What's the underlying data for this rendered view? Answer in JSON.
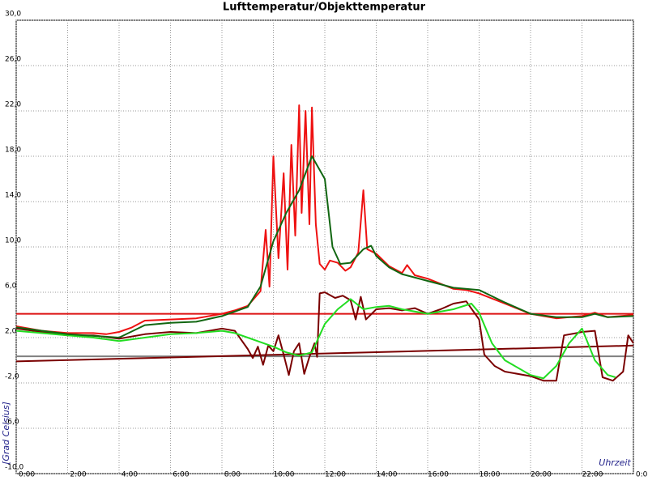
{
  "chart_data": {
    "type": "line",
    "title": "Lufttemperatur/Objekttemperatur",
    "xlabel": "Uhrzeit",
    "ylabel": "[Grad Celsius]",
    "xlim": [
      0,
      24
    ],
    "xticks": [
      {
        "value": 0,
        "label": "0:00"
      },
      {
        "value": 2,
        "label": "2:00"
      },
      {
        "value": 4,
        "label": "4:00"
      },
      {
        "value": 6,
        "label": "6:00"
      },
      {
        "value": 8,
        "label": "8:00"
      },
      {
        "value": 10,
        "label": "10:00"
      },
      {
        "value": 12,
        "label": "12:00"
      },
      {
        "value": 14,
        "label": "14:00"
      },
      {
        "value": 16,
        "label": "16:00"
      },
      {
        "value": 18,
        "label": "18:00"
      },
      {
        "value": 20,
        "label": "20:00"
      },
      {
        "value": 22,
        "label": "22:00"
      },
      {
        "value": 24,
        "label": "0:00"
      }
    ],
    "ylim": [
      -10,
      30
    ],
    "yticks": [
      {
        "value": -10,
        "label": "-10,0"
      },
      {
        "value": -6,
        "label": "-6,0"
      },
      {
        "value": -2,
        "label": "-2,0"
      },
      {
        "value": 2,
        "label": "2,0"
      },
      {
        "value": 6,
        "label": "6,0"
      },
      {
        "value": 10,
        "label": "10,0"
      },
      {
        "value": 14,
        "label": "14,0"
      },
      {
        "value": 18,
        "label": "18,0"
      },
      {
        "value": 22,
        "label": "22,0"
      },
      {
        "value": 26,
        "label": "26,0"
      },
      {
        "value": 30,
        "label": "30,0"
      }
    ],
    "grid": true,
    "series": [
      {
        "color": "#808080",
        "x": [
          0,
          24
        ],
        "values": [
          0.35,
          0.35
        ]
      },
      {
        "color": "#dd1111",
        "x": [
          0,
          24
        ],
        "values": [
          4.1,
          4.1
        ]
      },
      {
        "color": "#7a0000",
        "x": [
          0,
          24
        ],
        "values": [
          -0.1,
          1.3
        ]
      },
      {
        "color": "#7a0000",
        "x": [
          0,
          1,
          2,
          3,
          4,
          5,
          6,
          7,
          8,
          8.5,
          9,
          9.2,
          9.4,
          9.6,
          9.8,
          10,
          10.2,
          10.4,
          10.6,
          10.8,
          11,
          11.2,
          11.4,
          11.6,
          11.7,
          11.8,
          12,
          12.4,
          12.7,
          13,
          13.2,
          13.4,
          13.6,
          14,
          14.5,
          15,
          15.5,
          16,
          16.5,
          17,
          17.5,
          18,
          18.2,
          18.6,
          19,
          20,
          20.5,
          21,
          21.3,
          21.8,
          22,
          22.5,
          22.8,
          23.2,
          23.6,
          23.8,
          24
        ],
        "values": [
          2.8,
          2.5,
          2.2,
          2.2,
          1.9,
          2.3,
          2.5,
          2.4,
          2.8,
          2.6,
          1.0,
          0.2,
          1.2,
          -0.4,
          1.3,
          0.8,
          2.2,
          0.5,
          -1.3,
          0.8,
          1.5,
          -1.2,
          0.3,
          1.5,
          0.3,
          5.9,
          6.0,
          5.5,
          5.7,
          5.3,
          3.6,
          5.6,
          3.6,
          4.5,
          4.6,
          4.4,
          4.6,
          4.1,
          4.5,
          5.0,
          5.2,
          3.6,
          0.5,
          -0.5,
          -1.0,
          -1.4,
          -1.8,
          -1.8,
          2.2,
          2.4,
          2.5,
          2.6,
          -1.5,
          -1.8,
          -1.0,
          2.2,
          1.5
        ]
      },
      {
        "color": "#22dd22",
        "x": [
          0,
          2,
          3,
          4,
          5,
          6,
          7,
          8,
          8.5,
          9,
          9.5,
          10,
          10.5,
          11,
          11.5,
          12,
          12.5,
          13,
          13.5,
          14,
          14.5,
          15,
          16,
          17,
          17.7,
          18,
          18.5,
          19,
          20,
          20.5,
          21,
          21.5,
          22,
          22.5,
          23,
          23.3
        ],
        "values": [
          2.6,
          2.2,
          2.0,
          1.7,
          2.0,
          2.3,
          2.4,
          2.6,
          2.4,
          2.0,
          1.6,
          1.2,
          0.7,
          0.4,
          0.7,
          3.2,
          4.5,
          5.4,
          4.5,
          4.7,
          4.8,
          4.5,
          4.1,
          4.5,
          5.0,
          4.2,
          1.5,
          0,
          -1.3,
          -1.6,
          -0.5,
          1.5,
          2.8,
          0,
          -1.3,
          -1.5
        ]
      },
      {
        "color": "#ee1111",
        "x": [
          0,
          1,
          2,
          3,
          3.5,
          4,
          4.5,
          5,
          6,
          7,
          8,
          8.5,
          9,
          9.5,
          9.7,
          9.85,
          10,
          10.2,
          10.4,
          10.55,
          10.7,
          10.85,
          11,
          11.1,
          11.25,
          11.4,
          11.5,
          11.65,
          11.8,
          12,
          12.2,
          12.5,
          12.8,
          13,
          13.3,
          13.5,
          13.65,
          14,
          14.5,
          15,
          15.2,
          15.5,
          16,
          17,
          17.5,
          18,
          19,
          20,
          21,
          21.5,
          22,
          22.5,
          23,
          24
        ],
        "values": [
          3.0,
          2.6,
          2.4,
          2.4,
          2.3,
          2.5,
          2.9,
          3.5,
          3.6,
          3.7,
          4.1,
          4.4,
          4.8,
          6.1,
          11.5,
          6.5,
          18,
          9,
          16.5,
          8,
          19,
          11,
          22.5,
          13,
          22,
          12,
          22.3,
          12,
          8.5,
          8.0,
          8.8,
          8.6,
          7.9,
          8.2,
          9.5,
          15,
          9.8,
          9.4,
          8.3,
          7.7,
          8.4,
          7.5,
          7.2,
          6.3,
          6.2,
          5.9,
          5.0,
          4.1,
          3.7,
          3.8,
          3.9,
          4.2,
          3.8,
          4.0
        ]
      },
      {
        "color": "#116611",
        "x": [
          0,
          2,
          4,
          5,
          6,
          7,
          8,
          9,
          9.5,
          10,
          10.5,
          11,
          11.5,
          12,
          12.3,
          12.6,
          13,
          13.5,
          13.8,
          14,
          14.5,
          15,
          16,
          17,
          18,
          19,
          20,
          21,
          22,
          22.5,
          23,
          24
        ],
        "values": [
          2.9,
          2.3,
          2.0,
          3.1,
          3.3,
          3.4,
          3.9,
          4.7,
          6.5,
          10.5,
          13,
          15,
          18,
          16,
          10,
          8.5,
          8.6,
          9.8,
          10.1,
          9.2,
          8.2,
          7.6,
          7.0,
          6.4,
          6.2,
          5.1,
          4.1,
          3.8,
          3.8,
          4.1,
          3.8,
          3.9
        ]
      }
    ]
  }
}
